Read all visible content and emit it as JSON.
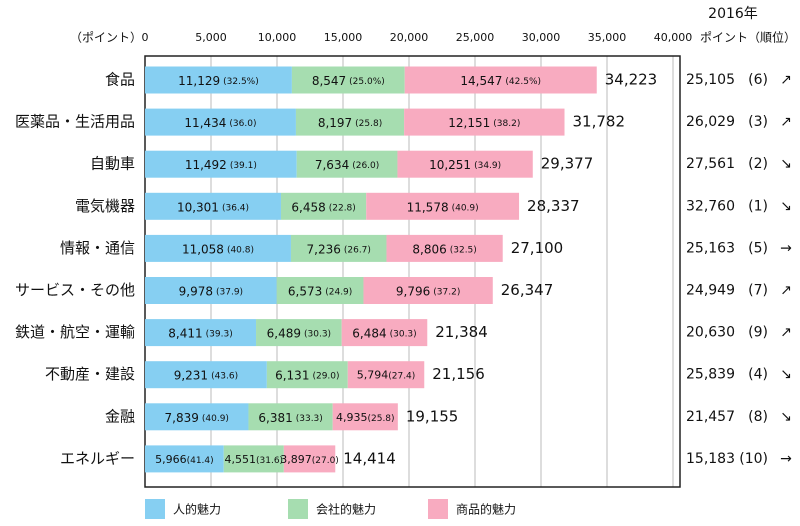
{
  "chart_data": {
    "type": "bar",
    "orientation": "horizontal",
    "stacked": true,
    "x_axis_label": "（ポイント）",
    "categories": [
      "食品",
      "医薬品・生活用品",
      "自動車",
      "電気機器",
      "情報・通信",
      "サービス・その他",
      "鉄道・航空・運輸",
      "不動産・建設",
      "金融",
      "エネルギー"
    ],
    "series": [
      {
        "name": "人的魅力",
        "color": "#86cff2",
        "values": [
          11129,
          11434,
          11492,
          10301,
          11058,
          9978,
          8411,
          9231,
          7839,
          5966
        ],
        "value_labels": [
          "11,129",
          "11,434",
          "11,492",
          "10,301",
          "11,058",
          "9,978",
          "8,411",
          "9,231",
          "7,839",
          "5,966"
        ],
        "shares": [
          32.5,
          36.0,
          39.1,
          36.4,
          40.8,
          37.9,
          39.3,
          43.6,
          40.9,
          41.4
        ],
        "share_labels": [
          "(32.5%)",
          "(36.0)",
          "(39.1)",
          "(36.4)",
          "(40.8)",
          "(37.9)",
          "(39.3)",
          "(43.6)",
          "(40.9)",
          "(41.4)"
        ]
      },
      {
        "name": "会社的魅力",
        "color": "#a6ddb0",
        "values": [
          8547,
          8197,
          7634,
          6458,
          7236,
          6573,
          6489,
          6131,
          6381,
          4551
        ],
        "value_labels": [
          "8,547",
          "8,197",
          "7,634",
          "6,458",
          "7,236",
          "6,573",
          "6,489",
          "6,131",
          "6,381",
          "4,551"
        ],
        "shares": [
          25.0,
          25.8,
          26.0,
          22.8,
          26.7,
          24.9,
          30.3,
          29.0,
          33.3,
          31.6
        ],
        "share_labels": [
          "(25.0%)",
          "(25.8)",
          "(26.0)",
          "(22.8)",
          "(26.7)",
          "(24.9)",
          "(30.3)",
          "(29.0)",
          "(33.3)",
          "(31.6)"
        ]
      },
      {
        "name": "商品的魅力",
        "color": "#f8abc0",
        "values": [
          14547,
          12151,
          10251,
          11578,
          8806,
          9796,
          6484,
          5794,
          4935,
          3897
        ],
        "value_labels": [
          "14,547",
          "12,151",
          "10,251",
          "11,578",
          "8,806",
          "9,796",
          "6,484",
          "5,794",
          "4,935",
          "3,897"
        ],
        "shares": [
          42.5,
          38.2,
          34.9,
          40.9,
          32.5,
          37.2,
          30.3,
          27.4,
          25.8,
          27.0
        ],
        "share_labels": [
          "(42.5%)",
          "(38.2)",
          "(34.9)",
          "(40.9)",
          "(32.5)",
          "(37.2)",
          "(30.3)",
          "(27.4)",
          "(25.8)",
          "(27.0)"
        ]
      }
    ],
    "totals": [
      34223,
      31782,
      29377,
      28337,
      27100,
      26347,
      21384,
      21156,
      19155,
      14414
    ],
    "total_labels": [
      "34,223",
      "31,782",
      "29,377",
      "28,337",
      "27,100",
      "26,347",
      "21,384",
      "21,156",
      "19,155",
      "14,414"
    ],
    "xlim": [
      0,
      40000
    ],
    "xticks": [
      0,
      {
        "value": 5000,
        "label": "5,000"
      },
      {
        "value": 10000,
        "label": "10,000"
      },
      {
        "value": 15000,
        "label": "15,000"
      },
      {
        "value": 20000,
        "label": "20,000"
      },
      {
        "value": 25000,
        "label": "25,000"
      },
      {
        "value": 30000,
        "label": "30,000"
      },
      {
        "value": 35000,
        "label": "35,000"
      },
      {
        "value": 40000,
        "label": "40,000"
      }
    ],
    "grid": true,
    "legend": "bottom",
    "previous": {
      "title": "2016年",
      "header": "ポイント（順位）",
      "points": [
        "25,105",
        "26,029",
        "27,561",
        "32,760",
        "25,163",
        "24,949",
        "20,630",
        "25,839",
        "21,457",
        "15,183"
      ],
      "ranks": [
        "(6)",
        "(3)",
        "(2)",
        "(1)",
        "(5)",
        "(7)",
        "(9)",
        "(4)",
        "(8)",
        "(10)"
      ],
      "trends": [
        "↗",
        "↗",
        "↘",
        "↘",
        "→",
        "↗",
        "↗",
        "↘",
        "↘",
        "→"
      ]
    }
  }
}
